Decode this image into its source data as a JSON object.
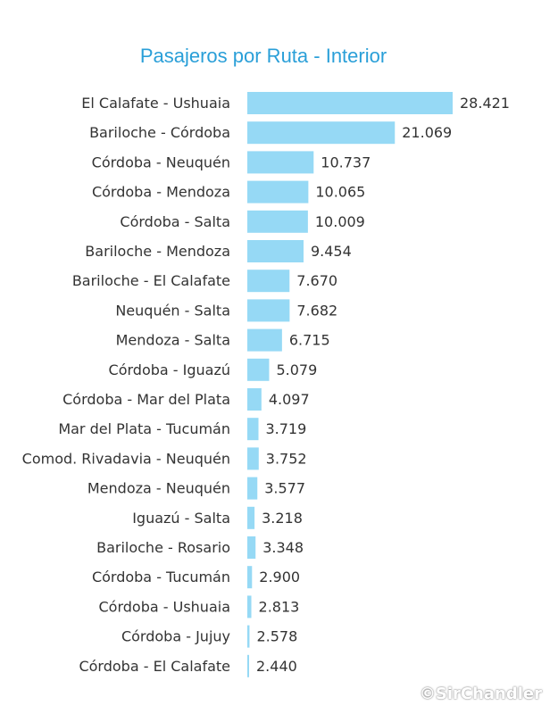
{
  "chart_data": {
    "type": "bar",
    "orientation": "horizontal",
    "title": "Pasajeros por Ruta - Interior",
    "bar_color": "#96d9f5",
    "categories": [
      "El Calafate - Ushuaia",
      "Bariloche - Córdoba",
      "Córdoba - Neuquén",
      "Córdoba - Mendoza",
      "Córdoba - Salta",
      "Bariloche - Mendoza",
      "Bariloche - El Calafate",
      "Neuquén - Salta",
      "Mendoza - Salta",
      "Córdoba - Iguazú",
      "Córdoba - Mar del Plata",
      "Mar del Plata - Tucumán",
      "Comod. Rivadavia - Neuquén",
      "Mendoza - Neuquén",
      "Iguazú - Salta",
      "Bariloche - Rosario",
      "Córdoba - Tucumán",
      "Córdoba - Ushuaia",
      "Córdoba - Jujuy",
      "Córdoba - El Calafate"
    ],
    "values": [
      28421,
      21069,
      10737,
      10065,
      10009,
      9454,
      7670,
      7682,
      6715,
      5079,
      4097,
      3719,
      3752,
      3577,
      3218,
      3348,
      2900,
      2813,
      2578,
      2440
    ],
    "value_labels": [
      "28.421",
      "21.069",
      "10.737",
      "10.065",
      "10.009",
      "9.454",
      "7.670",
      "7.682",
      "6.715",
      "5.079",
      "4.097",
      "3.719",
      "3.752",
      "3.577",
      "3.218",
      "3.348",
      "2.900",
      "2.813",
      "2.578",
      "2.440"
    ],
    "xlim": [
      2300,
      28421
    ],
    "grid": false,
    "legend": "none"
  },
  "watermark": "©SirChandler"
}
